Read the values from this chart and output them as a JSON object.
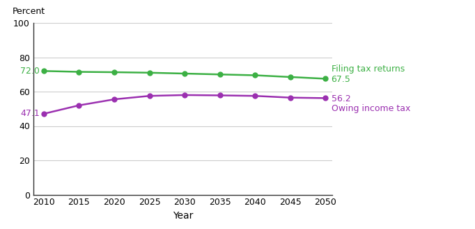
{
  "years": [
    2010,
    2015,
    2020,
    2025,
    2030,
    2035,
    2040,
    2045,
    2050
  ],
  "filing_tax_returns": [
    72.0,
    71.5,
    71.3,
    71.0,
    70.5,
    70.0,
    69.5,
    68.5,
    67.5
  ],
  "owing_income_tax": [
    47.1,
    52.0,
    55.5,
    57.5,
    58.0,
    57.8,
    57.5,
    56.5,
    56.2
  ],
  "filing_color": "#3cb044",
  "owing_color": "#9b30b0",
  "filing_label": "Filing tax returns",
  "owing_label": "Owing income tax",
  "filing_start_label": "72.0",
  "filing_end_label": "67.5",
  "owing_start_label": "47.1",
  "owing_end_label": "56.2",
  "percent_label": "Percent",
  "xlabel": "Year",
  "ylim": [
    0,
    100
  ],
  "yticks": [
    0,
    20,
    40,
    60,
    80,
    100
  ],
  "xticks": [
    2010,
    2015,
    2020,
    2025,
    2030,
    2035,
    2040,
    2045,
    2050
  ],
  "grid_color": "#cccccc",
  "background_color": "#ffffff",
  "marker_size": 5,
  "line_width": 1.8
}
